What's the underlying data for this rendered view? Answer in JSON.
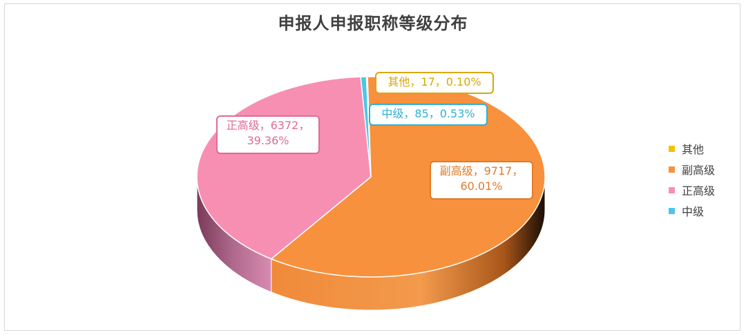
{
  "chart_data": {
    "type": "pie",
    "title": "申报人申报职称等级分布",
    "categories": [
      "其他",
      "副高级",
      "正高级",
      "中级"
    ],
    "values": [
      17,
      9717,
      6372,
      85
    ],
    "percents": [
      "0.10%",
      "60.01%",
      "39.36%",
      "0.53%"
    ],
    "data_labels": [
      {
        "line1": "其他，17，0.10%",
        "line2": ""
      },
      {
        "line1": "副高级，9717，",
        "line2": "60.01%"
      },
      {
        "line1": "正高级，6372，",
        "line2": "39.36%"
      },
      {
        "line1": "中级，85，0.53%",
        "line2": ""
      }
    ],
    "colors": [
      "#f2c200",
      "#f7913d",
      "#f78fb3",
      "#4cc6e5"
    ],
    "label_text_colors": [
      "#d8a800",
      "#e07a28",
      "#e06a96",
      "#2fb0d6"
    ],
    "legend_position": "right",
    "style": "3d"
  },
  "legend": {
    "items": [
      {
        "label": "其他",
        "color": "#f2c200"
      },
      {
        "label": "副高级",
        "color": "#f7913d"
      },
      {
        "label": "正高级",
        "color": "#f78fb3"
      },
      {
        "label": "中级",
        "color": "#4cc6e5"
      }
    ]
  }
}
